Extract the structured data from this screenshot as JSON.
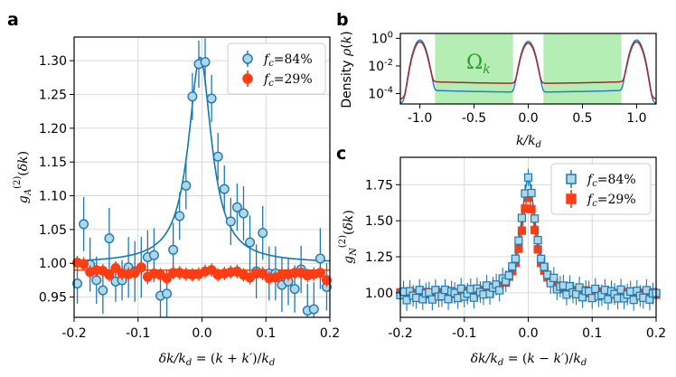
{
  "chart_data": [
    {
      "panel": "a",
      "type": "scatter",
      "xlabel": "δk/k_d = (k+k′)/k_d",
      "ylabel": "g_A^(2)(δk)",
      "xlim": [
        -0.2,
        0.2
      ],
      "ylim": [
        0.92,
        1.335
      ],
      "xticks": [
        "-0.2",
        "-0.1",
        "0.0",
        "0.1",
        "0.2"
      ],
      "yticks": [
        "0.95",
        "1.00",
        "1.05",
        "1.10",
        "1.15",
        "1.20",
        "1.25",
        "1.30"
      ],
      "legend": [
        "f_c = 84%",
        "f_c = 29%"
      ],
      "colors": {
        "high": "#add8e6",
        "high_edge": "#1f77b4",
        "low": "#ff3c14",
        "fit_high": "#0a7ab0",
        "fit_low": "#ff4500"
      },
      "fit_high": {
        "baseline": 1.0,
        "amplitude": 0.305,
        "center": -0.003,
        "width": 0.022
      },
      "fit_low": {
        "baseline": 0.99
      },
      "series": [
        {
          "name": "f_c = 84%",
          "x": [
            -0.195,
            -0.185,
            -0.175,
            -0.165,
            -0.155,
            -0.145,
            -0.135,
            -0.125,
            -0.115,
            -0.105,
            -0.095,
            -0.085,
            -0.075,
            -0.065,
            -0.055,
            -0.045,
            -0.035,
            -0.025,
            -0.015,
            -0.005,
            0.005,
            0.015,
            0.025,
            0.035,
            0.045,
            0.055,
            0.065,
            0.075,
            0.085,
            0.095,
            0.105,
            0.115,
            0.125,
            0.135,
            0.145,
            0.155,
            0.165,
            0.175,
            0.185,
            0.195
          ],
          "y": [
            0.97,
            1.058,
            0.998,
            0.975,
            0.96,
            1.037,
            0.973,
            0.975,
            0.994,
            0.988,
            0.994,
            1.009,
            1.012,
            0.952,
            0.955,
            1.02,
            1.07,
            1.115,
            1.247,
            1.295,
            1.298,
            1.244,
            1.158,
            1.11,
            1.062,
            1.083,
            1.074,
            1.031,
            0.988,
            1.045,
            0.985,
            0.985,
            0.968,
            0.973,
            0.962,
            0.991,
            0.93,
            0.932,
            1.007,
            0.965
          ],
          "err": [
            0.03,
            0.04,
            0.04,
            0.035,
            0.035,
            0.045,
            0.03,
            0.03,
            0.045,
            0.045,
            0.045,
            0.04,
            0.04,
            0.04,
            0.035,
            0.04,
            0.035,
            0.035,
            0.035,
            0.035,
            0.035,
            0.035,
            0.035,
            0.035,
            0.035,
            0.035,
            0.04,
            0.04,
            0.04,
            0.04,
            0.04,
            0.04,
            0.04,
            0.035,
            0.035,
            0.035,
            0.04,
            0.04,
            0.045,
            0.035
          ]
        },
        {
          "name": "f_c = 29%",
          "x": [
            -0.195,
            -0.185,
            -0.175,
            -0.165,
            -0.155,
            -0.145,
            -0.135,
            -0.125,
            -0.115,
            -0.105,
            -0.095,
            -0.085,
            -0.075,
            -0.065,
            -0.055,
            -0.045,
            -0.035,
            -0.025,
            -0.015,
            -0.005,
            0.005,
            0.015,
            0.025,
            0.035,
            0.045,
            0.055,
            0.065,
            0.075,
            0.085,
            0.095,
            0.105,
            0.115,
            0.125,
            0.135,
            0.145,
            0.155,
            0.165,
            0.175,
            0.185,
            0.195
          ],
          "y": [
            1.001,
            0.999,
            0.987,
            0.99,
            0.989,
            0.983,
            0.993,
            0.985,
            0.984,
            0.986,
            0.994,
            0.98,
            0.985,
            0.983,
            0.978,
            0.986,
            0.986,
            0.984,
            0.983,
            0.984,
            0.988,
            0.99,
            0.983,
            0.985,
            0.987,
            0.988,
            0.983,
            0.979,
            0.985,
            0.985,
            0.978,
            0.979,
            0.983,
            0.984,
            0.986,
            0.986,
            0.982,
            0.984,
            0.986,
            0.975
          ],
          "err": [
            0.01,
            0.01,
            0.01,
            0.01,
            0.01,
            0.01,
            0.01,
            0.01,
            0.01,
            0.01,
            0.01,
            0.01,
            0.01,
            0.01,
            0.01,
            0.01,
            0.01,
            0.01,
            0.01,
            0.01,
            0.01,
            0.01,
            0.01,
            0.01,
            0.01,
            0.01,
            0.01,
            0.01,
            0.01,
            0.01,
            0.01,
            0.01,
            0.01,
            0.01,
            0.01,
            0.01,
            0.01,
            0.01,
            0.01,
            0.01
          ]
        }
      ]
    },
    {
      "panel": "b",
      "type": "line",
      "xlabel": "k/k_d",
      "ylabel": "Density ρ(k)",
      "xlim": [
        -1.18,
        1.18
      ],
      "ylim_log10": [
        -4.75,
        0.35
      ],
      "xticks": [
        "-1.0",
        "-0.5",
        "0.0",
        "0.5",
        "1.0"
      ],
      "yticks": [
        "10^0",
        "10^-2",
        "10^-4"
      ],
      "annotation": "Ω_k",
      "shaded_regions": [
        [
          -0.86,
          -0.14
        ],
        [
          0.14,
          0.86
        ]
      ],
      "colors": {
        "shade": "#b4eeb4",
        "blue": "#2a7fc7",
        "red": "#a52a2a"
      },
      "series": [
        {
          "name": "f_c = 84%",
          "peak_height": 0.75,
          "center_height": 0.6,
          "floor": 0.00013,
          "wing": 6e-05
        },
        {
          "name": "f_c = 29%",
          "peak_height": 0.55,
          "center_height": 0.45,
          "floor": 0.00055,
          "wing": 0.00012
        }
      ]
    },
    {
      "panel": "c",
      "type": "scatter",
      "xlabel": "δk/k_d = (k−k′)/k_d",
      "ylabel": "g_N^(2)(δk)",
      "xlim": [
        -0.2,
        0.2
      ],
      "ylim": [
        0.83,
        1.94
      ],
      "xticks": [
        "-0.2",
        "-0.1",
        "0.0",
        "0.1",
        "0.2"
      ],
      "yticks": [
        "1.00",
        "1.25",
        "1.50",
        "1.75"
      ],
      "legend": [
        "f_c = 84%",
        "f_c = 29%"
      ],
      "fit_high": {
        "baseline": 0.99,
        "amplitude": 0.8,
        "width": 0.014
      },
      "fit_low": {
        "baseline": 0.99,
        "amplitude": 0.67,
        "width": 0.014
      },
      "series": [
        {
          "name": "f_c = 84%",
          "step": 0.005,
          "baseline": 0.98,
          "peak": 1.79,
          "width": 0.014,
          "err_out": 0.075,
          "err_in": 0.06
        },
        {
          "name": "f_c = 29%",
          "step": 0.005,
          "baseline": 0.99,
          "peak": 1.66,
          "width": 0.014,
          "err_out": 0.02,
          "err_in": 0.03
        }
      ]
    }
  ]
}
